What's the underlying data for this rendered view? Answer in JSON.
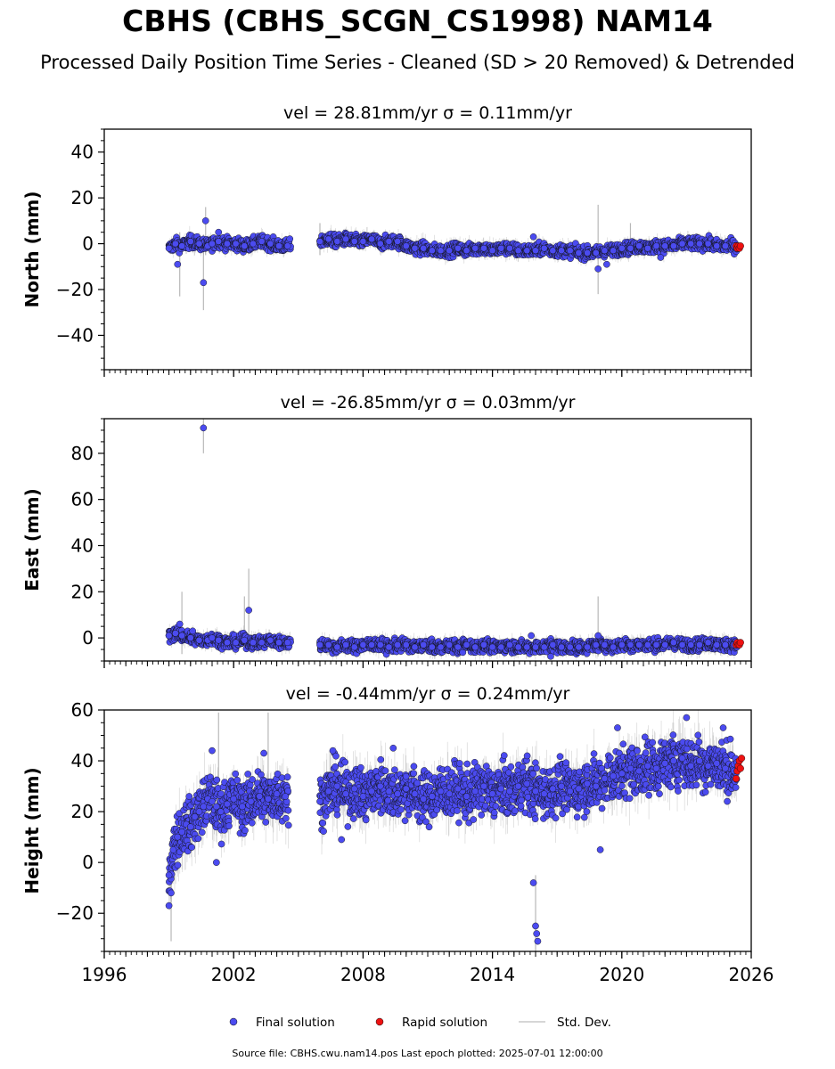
{
  "title": "CBHS (CBHS_SCGN_CS1998) NAM14",
  "subtitle": "Processed Daily Position Time Series - Cleaned (SD > 20 Removed) & Detrended",
  "footer": "Source file: CBHS.cwu.nam14.pos  Last epoch plotted: 2025-07-01 12:00:00",
  "colors": {
    "final": "#4b4bf0",
    "rapid": "#ee1111",
    "stddev": "#9a9a9a",
    "marker_edge": "#111111"
  },
  "legend": {
    "final": "Final solution",
    "rapid": "Rapid solution",
    "stddev": "Std. Dev.",
    "placement": "bottom-center"
  },
  "chart_data": [
    {
      "type": "scatter",
      "title": "vel = 28.81mm/yr   σ = 0.11mm/yr",
      "ylabel": "North (mm)",
      "xlim": [
        1996,
        2026
      ],
      "ylim": [
        -55,
        50
      ],
      "yticks": [
        -40,
        -20,
        0,
        20,
        40
      ],
      "xticks": [
        1996,
        2002,
        2008,
        2014,
        2020,
        2026
      ],
      "series": [
        {
          "name": "Final solution",
          "marker": "o",
          "x": [
            1999.0,
            1999.3,
            1999.6,
            2000.0,
            2000.4,
            2000.8,
            2001.0,
            2001.3,
            2001.7,
            2002.1,
            2002.5,
            2002.9,
            2003.3,
            2003.7,
            2004.1,
            2004.5,
            2006.0,
            2006.4,
            2006.8,
            2007.2,
            2007.6,
            2008.0,
            2008.4,
            2008.8,
            2009.2,
            2009.6,
            2010.0,
            2010.4,
            2010.8,
            2011.2,
            2011.6,
            2012.0,
            2012.4,
            2012.8,
            2013.2,
            2013.6,
            2014.0,
            2014.4,
            2014.8,
            2015.2,
            2015.6,
            2016.0,
            2016.4,
            2016.8,
            2017.2,
            2017.6,
            2018.0,
            2018.4,
            2018.8,
            2019.2,
            2019.6,
            2020.0,
            2020.4,
            2020.8,
            2021.2,
            2021.6,
            2022.0,
            2022.4,
            2022.8,
            2023.2,
            2023.6,
            2024.0,
            2024.4,
            2024.8,
            2025.2
          ],
          "y": [
            -2,
            0,
            -1,
            1,
            0,
            -1,
            0,
            1,
            0,
            0,
            -1,
            0,
            1,
            0,
            -1,
            -1,
            1,
            2,
            1,
            2,
            1,
            1,
            2,
            0,
            1,
            1,
            -1,
            -2,
            -2,
            -3,
            -3,
            -3,
            -2,
            -3,
            -2,
            -2,
            -3,
            -2,
            -2,
            -3,
            -3,
            -3,
            -2,
            -3,
            -3,
            -3,
            -4,
            -4,
            -4,
            -3,
            -3,
            -2,
            -2,
            -1,
            -2,
            -1,
            -1,
            -1,
            0,
            0,
            0,
            0,
            -1,
            -1,
            -1
          ]
        },
        {
          "name": "Rapid solution",
          "marker": "o",
          "x": [
            2025.3,
            2025.35,
            2025.4,
            2025.45,
            2025.5
          ],
          "y": [
            -1,
            -2,
            -1,
            -2,
            -1
          ]
        }
      ],
      "outliers": [
        {
          "x": 1999.4,
          "y": -9
        },
        {
          "x": 2000.6,
          "y": -17
        },
        {
          "x": 2000.7,
          "y": 10
        },
        {
          "x": 2001.3,
          "y": 5
        },
        {
          "x": 2018.9,
          "y": -11
        },
        {
          "x": 2019.3,
          "y": -9
        },
        {
          "x": 2015.9,
          "y": 3
        },
        {
          "x": 2021.8,
          "y": -6
        }
      ],
      "stddev_spikes": [
        {
          "x": 1999.5,
          "low": -23,
          "high": 5
        },
        {
          "x": 2000.6,
          "low": -29,
          "high": 4
        },
        {
          "x": 2000.7,
          "low": -5,
          "high": 16
        },
        {
          "x": 2006.0,
          "low": -5,
          "high": 9
        },
        {
          "x": 2018.9,
          "low": -22,
          "high": 17
        },
        {
          "x": 2020.4,
          "low": -4,
          "high": 9
        }
      ]
    },
    {
      "type": "scatter",
      "title": "vel = -26.85mm/yr   σ = 0.03mm/yr",
      "ylabel": "East (mm)",
      "xlim": [
        1996,
        2026
      ],
      "ylim": [
        -10,
        95
      ],
      "yticks": [
        0,
        20,
        40,
        60,
        80
      ],
      "xticks": [
        1996,
        2002,
        2008,
        2014,
        2020,
        2026
      ],
      "series": [
        {
          "name": "Final solution",
          "marker": "o",
          "x": [
            1999.0,
            1999.3,
            1999.6,
            2000.0,
            2000.4,
            2000.8,
            2001.0,
            2001.3,
            2001.7,
            2002.1,
            2002.5,
            2002.9,
            2003.3,
            2003.7,
            2004.1,
            2004.5,
            2006.0,
            2006.4,
            2006.8,
            2007.2,
            2007.6,
            2008.0,
            2008.4,
            2008.8,
            2009.2,
            2009.6,
            2010.0,
            2010.4,
            2010.8,
            2011.2,
            2011.6,
            2012.0,
            2012.4,
            2012.8,
            2013.2,
            2013.6,
            2014.0,
            2014.4,
            2014.8,
            2015.2,
            2015.6,
            2016.0,
            2016.4,
            2016.8,
            2017.2,
            2017.6,
            2018.0,
            2018.4,
            2018.8,
            2019.2,
            2019.6,
            2020.0,
            2020.4,
            2020.8,
            2021.2,
            2021.6,
            2022.0,
            2022.4,
            2022.8,
            2023.2,
            2023.6,
            2024.0,
            2024.4,
            2024.8,
            2025.2
          ],
          "y": [
            1,
            2,
            1,
            0,
            -1,
            -1,
            0,
            -1,
            -2,
            -2,
            -1,
            -2,
            -2,
            -1,
            -2,
            -2,
            -3,
            -3,
            -4,
            -3,
            -4,
            -3,
            -3,
            -3,
            -4,
            -3,
            -3,
            -4,
            -3,
            -4,
            -4,
            -3,
            -4,
            -3,
            -4,
            -3,
            -4,
            -4,
            -3,
            -4,
            -4,
            -4,
            -4,
            -3,
            -4,
            -4,
            -4,
            -4,
            -3,
            -3,
            -4,
            -3,
            -3,
            -3,
            -3,
            -3,
            -3,
            -2,
            -3,
            -3,
            -3,
            -2,
            -3,
            -3,
            -3
          ]
        },
        {
          "name": "Rapid solution",
          "marker": "o",
          "x": [
            2025.3,
            2025.35,
            2025.4,
            2025.45,
            2025.5
          ],
          "y": [
            -3,
            -2,
            -3,
            -3,
            -2
          ]
        }
      ],
      "outliers": [
        {
          "x": 2000.6,
          "y": 91
        },
        {
          "x": 1999.5,
          "y": 6
        },
        {
          "x": 2000.1,
          "y": 3
        },
        {
          "x": 2002.7,
          "y": 12
        },
        {
          "x": 2015.8,
          "y": 1
        },
        {
          "x": 2016.7,
          "y": -8
        },
        {
          "x": 2018.9,
          "y": 1
        }
      ],
      "stddev_spikes": [
        {
          "x": 1999.6,
          "low": -7,
          "high": 20
        },
        {
          "x": 2000.6,
          "low": 80,
          "high": 95
        },
        {
          "x": 2002.5,
          "low": -3,
          "high": 18
        },
        {
          "x": 2002.7,
          "low": 0,
          "high": 30
        },
        {
          "x": 2018.9,
          "low": -8,
          "high": 18
        }
      ]
    },
    {
      "type": "scatter",
      "title": "vel = -0.44mm/yr   σ = 0.24mm/yr",
      "ylabel": "Height (mm)",
      "xlim": [
        1996,
        2026
      ],
      "ylim": [
        -35,
        60
      ],
      "yticks": [
        -20,
        0,
        20,
        40,
        60
      ],
      "xticks": [
        1996,
        2002,
        2008,
        2014,
        2020,
        2026
      ],
      "series": [
        {
          "name": "Final solution",
          "marker": "o",
          "x": [
            1999.0,
            1999.2,
            1999.4,
            1999.6,
            1999.8,
            2000.0,
            2000.2,
            2000.4,
            2000.6,
            2000.8,
            2001.0,
            2001.2,
            2001.4,
            2001.7,
            2002.0,
            2002.4,
            2002.8,
            2003.2,
            2003.6,
            2004.0,
            2004.4,
            2006.0,
            2006.4,
            2006.8,
            2007.2,
            2007.6,
            2008.0,
            2008.4,
            2008.8,
            2009.2,
            2009.6,
            2010.0,
            2010.4,
            2010.8,
            2011.2,
            2011.6,
            2012.0,
            2012.4,
            2012.8,
            2013.2,
            2013.6,
            2014.0,
            2014.4,
            2014.8,
            2015.2,
            2015.6,
            2016.0,
            2016.4,
            2016.8,
            2017.2,
            2017.6,
            2018.0,
            2018.4,
            2018.8,
            2019.2,
            2019.6,
            2020.0,
            2020.4,
            2020.8,
            2021.2,
            2021.6,
            2022.0,
            2022.4,
            2022.8,
            2023.2,
            2023.6,
            2024.0,
            2024.4,
            2024.8,
            2025.2
          ],
          "y": [
            -5,
            5,
            10,
            12,
            15,
            14,
            18,
            20,
            22,
            25,
            24,
            22,
            20,
            23,
            25,
            22,
            24,
            26,
            25,
            27,
            26,
            24,
            28,
            30,
            27,
            29,
            26,
            28,
            30,
            28,
            27,
            29,
            27,
            25,
            26,
            28,
            27,
            29,
            26,
            28,
            30,
            27,
            29,
            28,
            30,
            31,
            28,
            27,
            29,
            30,
            28,
            29,
            31,
            30,
            33,
            34,
            35,
            37,
            36,
            38,
            37,
            39,
            40,
            41,
            38,
            40,
            38,
            39,
            37,
            36
          ]
        },
        {
          "name": "Rapid solution",
          "marker": "o",
          "x": [
            2025.3,
            2025.35,
            2025.4,
            2025.45,
            2025.5,
            2025.55
          ],
          "y": [
            33,
            36,
            38,
            40,
            37,
            41
          ]
        }
      ],
      "outliers": [
        {
          "x": 1999.0,
          "y": -17
        },
        {
          "x": 1999.1,
          "y": -12
        },
        {
          "x": 2001.0,
          "y": 44
        },
        {
          "x": 2001.2,
          "y": 0
        },
        {
          "x": 2003.4,
          "y": 43
        },
        {
          "x": 2006.6,
          "y": 44
        },
        {
          "x": 2007.0,
          "y": 9
        },
        {
          "x": 2009.4,
          "y": 45
        },
        {
          "x": 2015.9,
          "y": -8
        },
        {
          "x": 2016.0,
          "y": -25
        },
        {
          "x": 2016.05,
          "y": -28
        },
        {
          "x": 2016.1,
          "y": -31
        },
        {
          "x": 2019.0,
          "y": 5
        },
        {
          "x": 2019.8,
          "y": 53
        },
        {
          "x": 2023.0,
          "y": 57
        },
        {
          "x": 2024.7,
          "y": 53
        }
      ],
      "stddev_spikes": [
        {
          "x": 1999.1,
          "low": -31,
          "high": 5
        },
        {
          "x": 2001.3,
          "low": 20,
          "high": 59
        },
        {
          "x": 2003.6,
          "low": 15,
          "high": 59
        },
        {
          "x": 2016.0,
          "low": -35,
          "high": -5
        }
      ]
    }
  ]
}
